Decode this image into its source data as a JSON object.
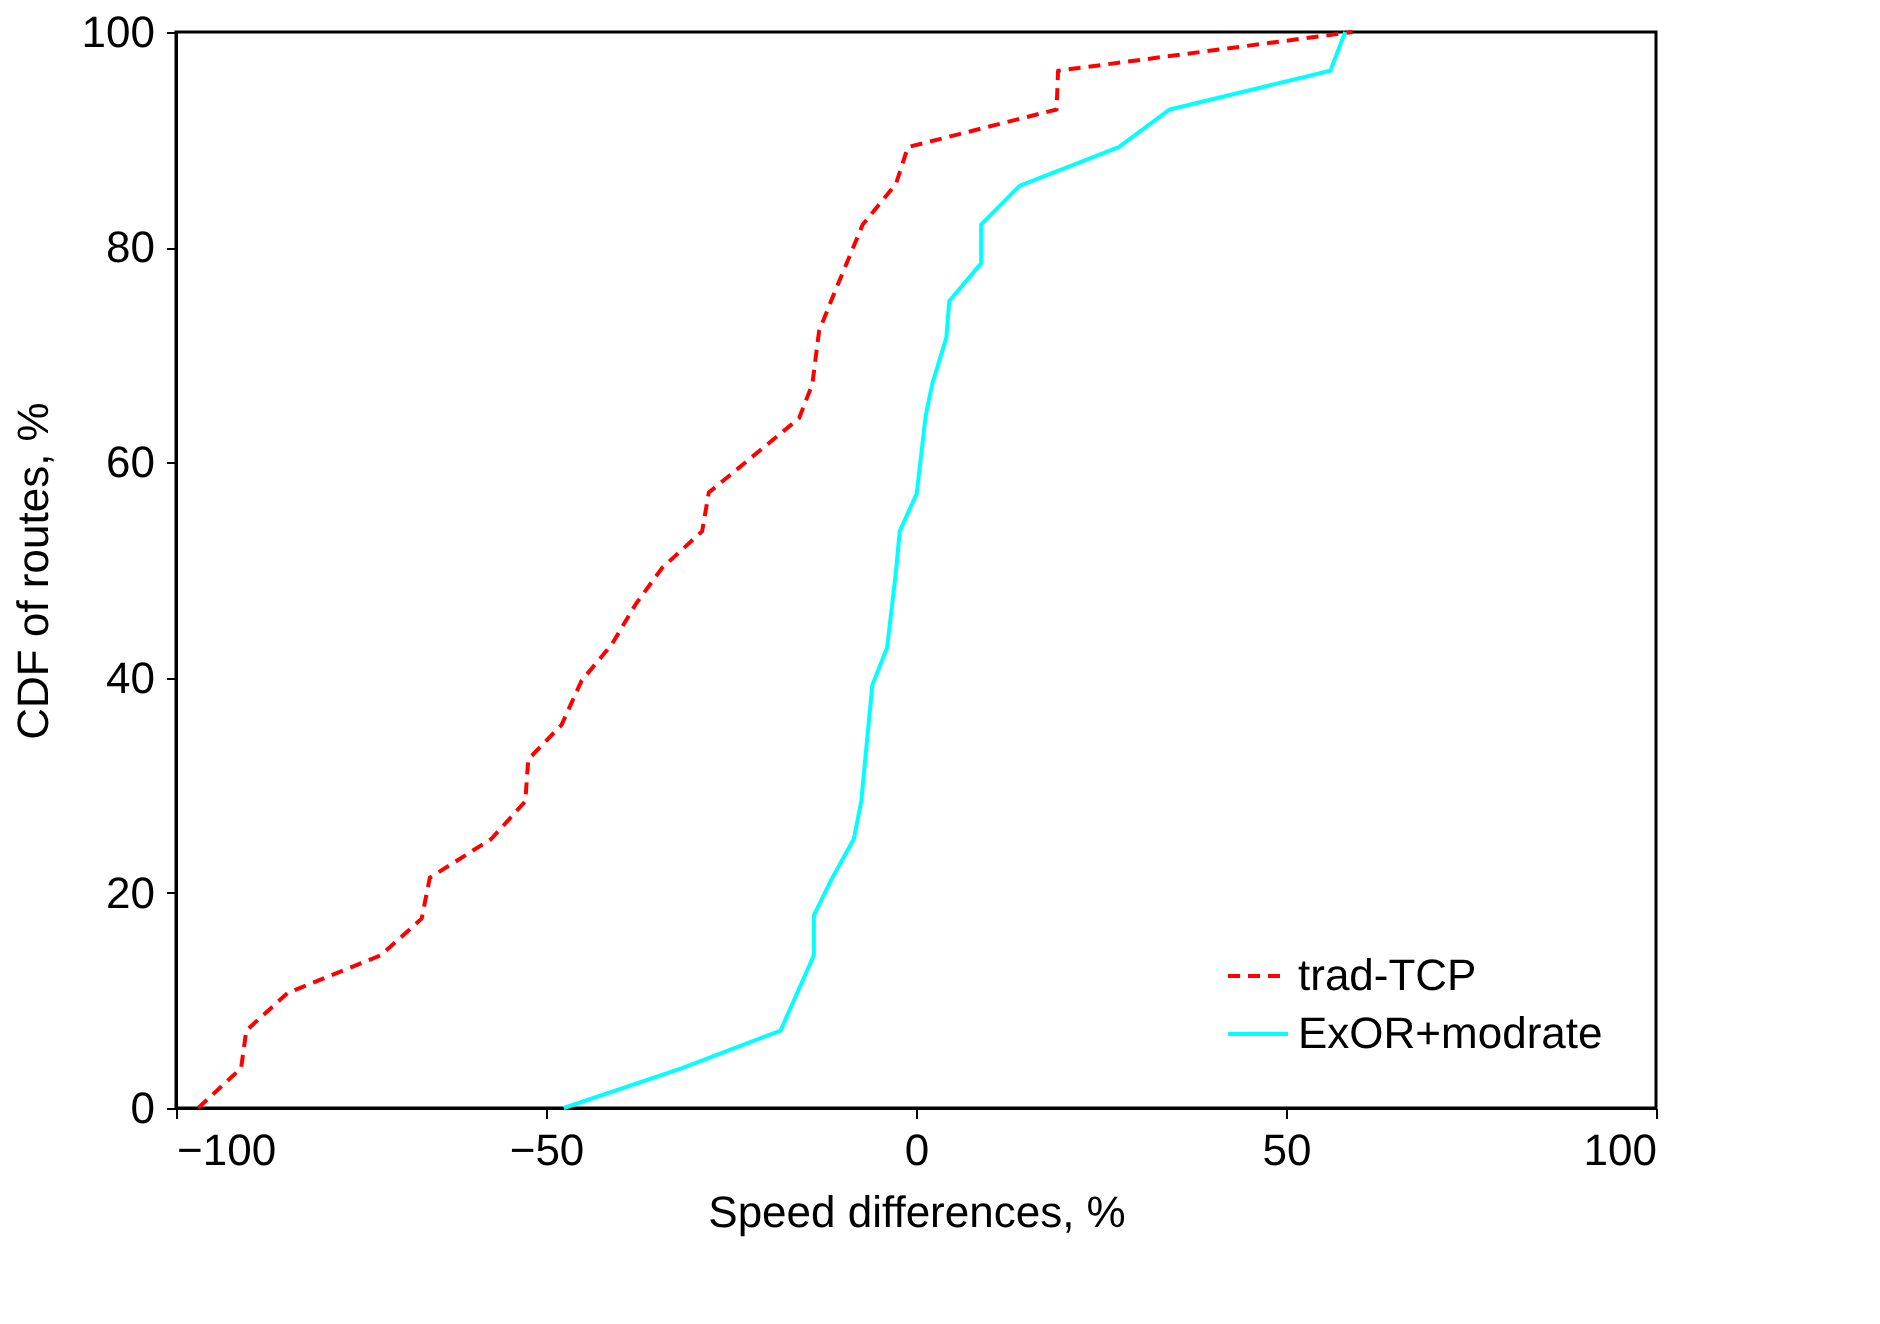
{
  "chart_data": {
    "type": "line",
    "xlabel": "Speed differences, %",
    "ylabel": "CDF of routes, %",
    "xlim": [
      -100,
      100
    ],
    "xticks": [
      -100,
      -50,
      0,
      50,
      100
    ],
    "ylim": [
      0,
      100
    ],
    "yticks": [
      0,
      20,
      40,
      60,
      80,
      100
    ],
    "grid": false,
    "legend": "bottom right",
    "marker": "none",
    "series": [
      {
        "name": "trad-TCP",
        "color": "#ff0000",
        "line_style": "dashed",
        "x": [
          -97,
          -91.2,
          -90.5,
          -84.9,
          -72.3,
          -66.8,
          -65.7,
          -57.4,
          -52.8,
          -52.4,
          -47.9,
          -45.2,
          -41.1,
          -37.9,
          -34.3,
          -28.9,
          -28,
          -15.8,
          -14,
          -13.1,
          -11.3,
          -7.2,
          -2.7,
          -1.1,
          19,
          19.2,
          59
        ],
        "values": [
          0,
          3.7,
          7.2,
          10.7,
          14.2,
          17.6,
          21.4,
          25,
          28.5,
          32.4,
          35.6,
          39.7,
          43.1,
          46.8,
          50.2,
          53.6,
          57.2,
          64.1,
          67.3,
          72.2,
          75.3,
          82.1,
          85.9,
          89.3,
          92.8,
          96.4,
          100
        ]
      },
      {
        "name": "ExOR+modrate",
        "color": "#00ffff",
        "line_style": "solid",
        "x": [
          -47.6,
          -31.6,
          -18.3,
          -13.8,
          -13.8,
          -11.3,
          -8.4,
          -7.4,
          -5.9,
          -3.9,
          -2.7,
          -2.2,
          0.1,
          1.3,
          2.2,
          4.1,
          4.5,
          8.8,
          8.8,
          14,
          27.4,
          34.3,
          56,
          58
        ],
        "values": [
          0,
          3.7,
          7.2,
          14.2,
          17.9,
          21.4,
          25,
          28.5,
          39.3,
          42.8,
          49.9,
          53.6,
          57.1,
          64.3,
          67.3,
          71.6,
          75,
          78.5,
          82.1,
          85.7,
          89.3,
          92.8,
          96.4,
          100
        ]
      }
    ]
  }
}
